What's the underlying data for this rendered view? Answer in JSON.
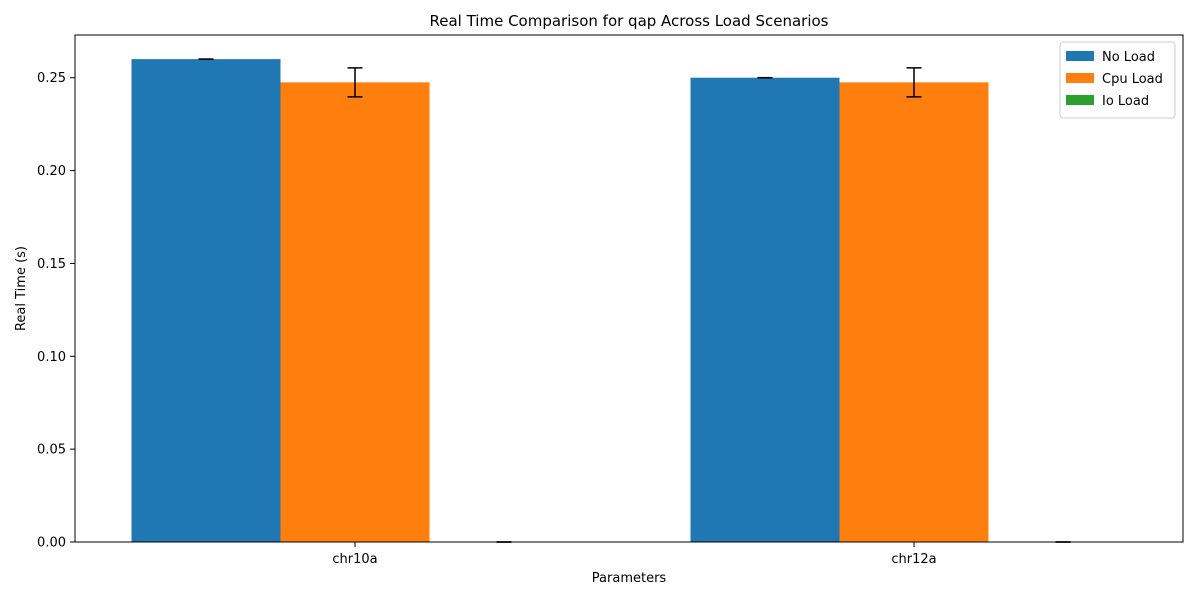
{
  "chart_data": {
    "type": "bar",
    "title": "Real Time Comparison for qap Across Load Scenarios",
    "xlabel": "Parameters",
    "ylabel": "Real Time (s)",
    "categories": [
      "chr10a",
      "chr12a"
    ],
    "series": [
      {
        "name": "No Load",
        "color": "#1f77b4",
        "values": [
          0.26,
          0.25
        ],
        "errors": [
          0.0,
          0.0
        ]
      },
      {
        "name": "Cpu Load",
        "color": "#ff7f0e",
        "values": [
          0.2475,
          0.2475
        ],
        "errors": [
          0.0078,
          0.0078
        ]
      },
      {
        "name": "Io Load",
        "color": "#2ca02c",
        "values": [
          0.0,
          0.0
        ],
        "errors": [
          0.0,
          0.0
        ]
      }
    ],
    "ylim": [
      0,
      0.273
    ],
    "yticks": [
      "0.00",
      "0.05",
      "0.10",
      "0.15",
      "0.20",
      "0.25"
    ],
    "grid": false,
    "legend_position": "top-right"
  }
}
